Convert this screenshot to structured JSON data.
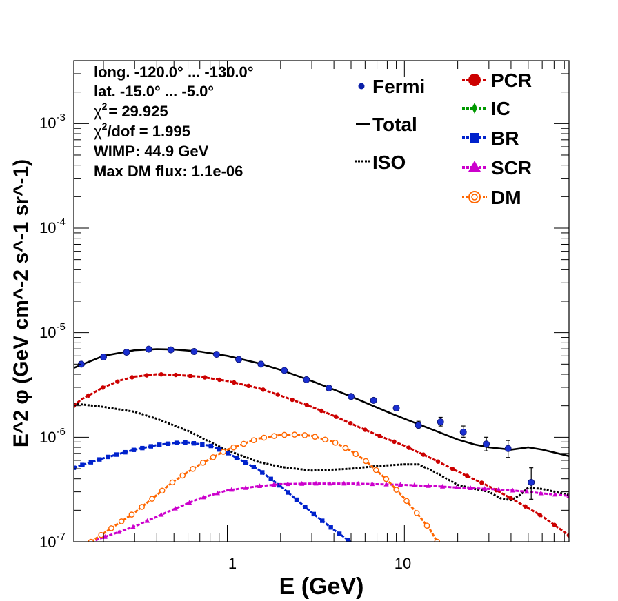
{
  "chart_data": {
    "type": "line",
    "xscale": "log",
    "yscale": "log",
    "xlim": [
      0.136,
      85
    ],
    "ylim": [
      1e-07,
      0.004
    ],
    "xlabel": "E (GeV)",
    "ylabel": "E^2 φ (GeV cm^-2 s^-1 sr^-1)",
    "x_tick_labels": [
      {
        "value": 1,
        "label": "1"
      },
      {
        "value": 10,
        "label": "10"
      }
    ],
    "y_tick_labels": [
      {
        "value": 1e-07,
        "base": "10",
        "exp": "-7"
      },
      {
        "value": 1e-06,
        "base": "10",
        "exp": "-6"
      },
      {
        "value": 1e-05,
        "base": "10",
        "exp": "-5"
      },
      {
        "value": 0.0001,
        "base": "10",
        "exp": "-4"
      },
      {
        "value": 0.001,
        "base": "10",
        "exp": "-3"
      }
    ],
    "info_lines": {
      "longitude": "long. -120.0° ... -130.0°",
      "latitude": "lat. -15.0° ... -5.0°",
      "chi2": "= 29.925",
      "chi2_dof": "/dof = 1.995",
      "wimp": "WIMP: 44.9 GeV",
      "max_dm_flux": "Max DM flux: 1.1e-06"
    },
    "info_symbols": {
      "chi": "χ",
      "sup2": "2"
    },
    "legend": [
      {
        "key": "fermi",
        "label": "Fermi",
        "color": "#0a1fa8",
        "marker": "dot"
      },
      {
        "key": "total",
        "label": "Total",
        "color": "#000000",
        "marker": "line"
      },
      {
        "key": "iso",
        "label": "ISO",
        "color": "#000000",
        "marker": "dotted"
      },
      {
        "key": "pcr",
        "label": "PCR",
        "color": "#cc0000",
        "marker": "circle"
      },
      {
        "key": "ic",
        "label": "IC",
        "color": "#009900",
        "marker": "diamond"
      },
      {
        "key": "br",
        "label": "BR",
        "color": "#0022cc",
        "marker": "square"
      },
      {
        "key": "scr",
        "label": "SCR",
        "color": "#cc00cc",
        "marker": "triangle"
      },
      {
        "key": "dm",
        "label": "DM",
        "color": "#ff6600",
        "marker": "open-circle"
      }
    ],
    "fermi_points": [
      {
        "x": 0.15,
        "y": 5e-06
      },
      {
        "x": 0.2,
        "y": 5.85e-06
      },
      {
        "x": 0.27,
        "y": 6.5e-06
      },
      {
        "x": 0.36,
        "y": 6.95e-06
      },
      {
        "x": 0.48,
        "y": 6.85e-06
      },
      {
        "x": 0.65,
        "y": 6.6e-06
      },
      {
        "x": 0.87,
        "y": 6.2e-06
      },
      {
        "x": 1.16,
        "y": 5.55e-06
      },
      {
        "x": 1.55,
        "y": 5e-06
      },
      {
        "x": 2.1,
        "y": 4.35e-06
      },
      {
        "x": 2.8,
        "y": 3.55e-06
      },
      {
        "x": 3.75,
        "y": 2.95e-06
      },
      {
        "x": 5.0,
        "y": 2.45e-06
      },
      {
        "x": 6.7,
        "y": 2.25e-06
      },
      {
        "x": 9.0,
        "y": 1.9e-06
      },
      {
        "x": 12.0,
        "y": 1.3e-06,
        "err": [
          1.2e-06,
          1.42e-06
        ]
      },
      {
        "x": 16.0,
        "y": 1.4e-06,
        "err": [
          1.28e-06,
          1.55e-06
        ]
      },
      {
        "x": 21.5,
        "y": 1.12e-06,
        "err": [
          1e-06,
          1.28e-06
        ]
      },
      {
        "x": 29.0,
        "y": 8.6e-07,
        "err": [
          7.4e-07,
          1e-06
        ]
      },
      {
        "x": 38.5,
        "y": 7.8e-07,
        "err": [
          6.4e-07,
          9.3e-07
        ]
      },
      {
        "x": 52.0,
        "y": 3.7e-07,
        "err": [
          2.55e-07,
          5.1e-07
        ]
      }
    ],
    "series": [
      {
        "name": "Total",
        "color": "#000000",
        "style": "solid",
        "marker": "none",
        "x": [
          0.136,
          0.2,
          0.3,
          0.4,
          0.5,
          0.7,
          1.0,
          1.5,
          2.0,
          3.0,
          4.0,
          5.0,
          6.0,
          8.0,
          10.0,
          15.0,
          20.0,
          25.0,
          30.0,
          40.0,
          50.0,
          60.0,
          85.0
        ],
        "y": [
          4.6e-06,
          6e-06,
          6.8e-06,
          6.95e-06,
          6.9e-06,
          6.6e-06,
          6e-06,
          5.1e-06,
          4.4e-06,
          3.45e-06,
          2.85e-06,
          2.45e-06,
          2.15e-06,
          1.75e-06,
          1.5e-06,
          1.15e-06,
          9.5e-07,
          8.5e-07,
          8e-07,
          7.6e-07,
          8e-07,
          7.6e-07,
          6.6e-07
        ]
      },
      {
        "name": "ISO",
        "color": "#000000",
        "style": "dotted",
        "marker": "none",
        "x": [
          0.136,
          0.2,
          0.3,
          0.4,
          0.6,
          0.8,
          1.0,
          1.5,
          2.0,
          3.0,
          4.0,
          5.0,
          7.0,
          10.0,
          12.0,
          15.0,
          20.0,
          25.0,
          30.0,
          35.0,
          40.0,
          45.0,
          50.0,
          60.0,
          85.0
        ],
        "y": [
          2.1e-06,
          1.95e-06,
          1.75e-06,
          1.5e-06,
          1.15e-06,
          9e-07,
          7.5e-07,
          5.8e-07,
          5.2e-07,
          4.8e-07,
          4.9e-07,
          5e-07,
          5.3e-07,
          5.5e-07,
          5.5e-07,
          4.6e-07,
          3.5e-07,
          3.2e-07,
          3e-07,
          2.6e-07,
          2.5e-07,
          2.8e-07,
          3.3e-07,
          3.2e-07,
          2.8e-07
        ]
      },
      {
        "name": "PCR",
        "color": "#cc0000",
        "style": "dashed",
        "marker": "circle",
        "x": [
          0.136,
          0.15,
          0.2,
          0.25,
          0.3,
          0.4,
          0.5,
          0.7,
          1.0,
          1.5,
          2.0,
          3.0,
          4.0,
          5.0,
          7.0,
          10.0,
          15.0,
          20.0,
          30.0,
          40.0,
          50.0,
          60.0,
          85.0
        ],
        "y": [
          2e-06,
          2.3e-06,
          3e-06,
          3.5e-06,
          3.8e-06,
          4e-06,
          3.95e-06,
          3.8e-06,
          3.45e-06,
          2.95e-06,
          2.5e-06,
          1.95e-06,
          1.6e-06,
          1.35e-06,
          1.05e-06,
          8.3e-07,
          6e-07,
          4.7e-07,
          3.4e-07,
          2.6e-07,
          2.1e-07,
          1.75e-07,
          1.15e-07
        ]
      },
      {
        "name": "BR",
        "color": "#0022cc",
        "style": "dashed",
        "marker": "square",
        "x": [
          0.136,
          0.2,
          0.3,
          0.4,
          0.5,
          0.6,
          0.8,
          1.0,
          1.5,
          2.0,
          3.0,
          4.0,
          5.0,
          6.0
        ],
        "y": [
          5.1e-07,
          6.3e-07,
          7.6e-07,
          8.4e-07,
          8.8e-07,
          8.9e-07,
          8.3e-07,
          7.1e-07,
          4.9e-07,
          3.4e-07,
          1.9e-07,
          1.3e-07,
          9.9e-08,
          8e-08
        ]
      },
      {
        "name": "SCR",
        "color": "#cc00cc",
        "style": "dashed",
        "marker": "triangle",
        "x": [
          0.17,
          0.2,
          0.3,
          0.5,
          0.7,
          1.0,
          1.5,
          2.0,
          3.0,
          5.0,
          7.0,
          10.0,
          15.0,
          20.0,
          30.0,
          40.0,
          50.0,
          60.0,
          85.0
        ],
        "y": [
          1e-07,
          1.1e-07,
          1.4e-07,
          2.05e-07,
          2.6e-07,
          3.1e-07,
          3.4e-07,
          3.55e-07,
          3.6e-07,
          3.6e-07,
          3.55e-07,
          3.5e-07,
          3.4e-07,
          3.3e-07,
          3.2e-07,
          3.1e-07,
          3e-07,
          2.9e-07,
          2.75e-07
        ]
      },
      {
        "name": "DM",
        "color": "#ff6600",
        "style": "dashed",
        "marker": "open-circle",
        "x": [
          0.17,
          0.2,
          0.3,
          0.4,
          0.5,
          0.7,
          1.0,
          1.5,
          2.0,
          2.5,
          3.0,
          4.0,
          5.0,
          6.0,
          8.0,
          10.0,
          12.0,
          14.0,
          15.3
        ],
        "y": [
          1e-07,
          1.2e-07,
          1.9e-07,
          2.8e-07,
          3.8e-07,
          5.5e-07,
          7.6e-07,
          9.7e-07,
          1.05e-06,
          1.06e-06,
          1.03e-06,
          9e-07,
          7.4e-07,
          6e-07,
          3.9e-07,
          2.6e-07,
          1.8e-07,
          1.3e-07,
          1e-07
        ]
      }
    ]
  }
}
